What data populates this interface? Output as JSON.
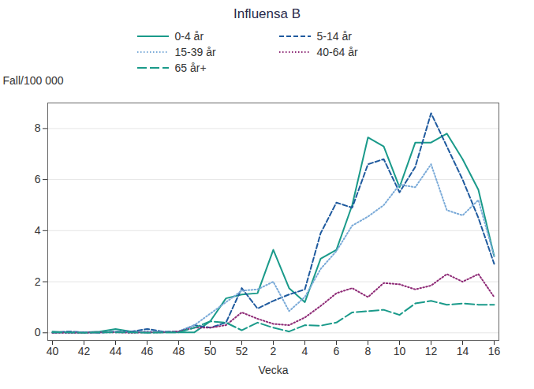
{
  "chart_data": {
    "type": "line",
    "title": "Influensa B",
    "x_label": "Vecka",
    "y_label": "Fall/100 000",
    "categories": [
      "40",
      null,
      "42",
      null,
      "44",
      null,
      "46",
      null,
      "48",
      null,
      "50",
      null,
      "52",
      null,
      "2",
      null,
      "4",
      null,
      "6",
      null,
      "8",
      null,
      "10",
      null,
      "12",
      null,
      "14",
      null,
      "16"
    ],
    "ylim": [
      -0.3,
      9
    ],
    "yticks": [
      0,
      2,
      4,
      6,
      8
    ],
    "grid": true,
    "legend": "top",
    "series": [
      {
        "name": "0-4 år",
        "color": "#1a9a8a",
        "line_style": "solid",
        "values": [
          0.05,
          0.02,
          0.02,
          0.05,
          0.15,
          0.05,
          0.02,
          0.02,
          0.02,
          0.02,
          0.45,
          1.35,
          1.5,
          1.55,
          3.25,
          1.75,
          1.2,
          2.9,
          3.25,
          5.0,
          7.65,
          7.3,
          5.7,
          7.45,
          7.45,
          7.8,
          6.8,
          5.6,
          3.0
        ]
      },
      {
        "name": "5-14 år",
        "color": "#1f5a9e",
        "line_style": "dashed",
        "values": [
          0.0,
          0.05,
          0.02,
          0.0,
          0.05,
          0.05,
          0.15,
          0.05,
          0.05,
          0.3,
          0.2,
          0.4,
          1.75,
          0.95,
          1.25,
          1.5,
          1.7,
          3.9,
          5.1,
          4.9,
          6.6,
          6.8,
          5.5,
          6.5,
          8.6,
          7.3,
          6.0,
          4.5,
          2.7
        ]
      },
      {
        "name": "15-39 år",
        "color": "#7aaad8",
        "line_style": "dotted",
        "values": [
          0.0,
          0.0,
          0.02,
          0.02,
          0.05,
          0.02,
          0.05,
          0.05,
          0.05,
          0.3,
          0.75,
          1.2,
          1.65,
          1.7,
          2.0,
          0.85,
          1.4,
          2.5,
          3.2,
          4.2,
          4.55,
          5.0,
          5.8,
          5.7,
          6.6,
          4.8,
          4.6,
          5.2,
          3.0
        ]
      },
      {
        "name": "40-64 år",
        "color": "#8e2a76",
        "line_style": "dotted",
        "values": [
          0.0,
          0.0,
          0.0,
          0.02,
          0.02,
          0.0,
          0.02,
          0.02,
          0.05,
          0.2,
          0.2,
          0.3,
          0.8,
          0.55,
          0.35,
          0.3,
          0.6,
          1.05,
          1.55,
          1.75,
          1.4,
          1.95,
          1.9,
          1.7,
          1.85,
          2.3,
          2.0,
          2.3,
          1.4
        ]
      },
      {
        "name": "65 år+",
        "color": "#1a9a8a",
        "line_style": "long_dash",
        "values": [
          0.02,
          0.02,
          0.0,
          0.02,
          0.02,
          0.02,
          0.0,
          0.02,
          0.02,
          0.2,
          0.45,
          0.4,
          0.1,
          0.4,
          0.2,
          0.05,
          0.3,
          0.28,
          0.4,
          0.8,
          0.85,
          0.9,
          0.7,
          1.15,
          1.25,
          1.1,
          1.15,
          1.1,
          1.1
        ]
      }
    ]
  }
}
